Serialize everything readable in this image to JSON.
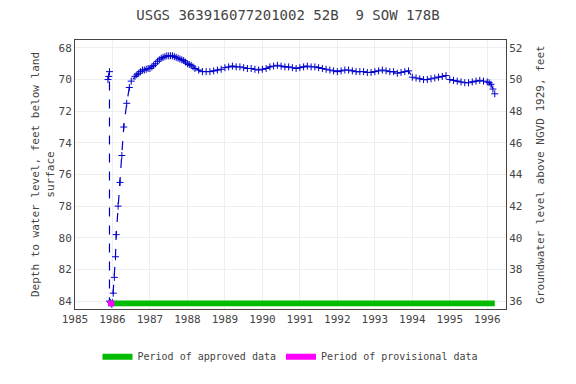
{
  "chart_data": {
    "type": "line",
    "title": "USGS 363916077201002 52B  9 SOW 178B",
    "ylabel": "Depth to water level, feet below land\nsurface",
    "y2label": "Groundwater level above NGVD 1929, feet",
    "xlim": [
      1985.0,
      1996.5
    ],
    "xticks": [
      1985,
      1986,
      1987,
      1988,
      1989,
      1990,
      1991,
      1992,
      1993,
      1994,
      1995,
      1996
    ],
    "ylim": [
      84.5,
      67.5
    ],
    "yticks": [
      68,
      70,
      72,
      74,
      76,
      78,
      80,
      82,
      84
    ],
    "y2lim": [
      35.5,
      52.5
    ],
    "y2ticks": [
      36,
      38,
      40,
      42,
      44,
      46,
      48,
      50,
      52
    ],
    "grid": true,
    "legend": "bottom",
    "series": [
      {
        "type": "line",
        "color": "#0000cc",
        "line_style": "dashed",
        "marker": "plus",
        "x": [
          1985.88,
          1985.9,
          1985.92,
          1985.92,
          1985.95,
          1985.98,
          1986.0,
          1986.02,
          1986.05,
          1986.08,
          1986.1,
          1986.15,
          1986.2,
          1986.25,
          1986.3,
          1986.38,
          1986.45,
          1986.5,
          1986.6,
          1986.65,
          1986.7,
          1986.75,
          1986.8,
          1986.85,
          1986.9,
          1986.95,
          1987.0,
          1987.05,
          1987.1,
          1987.15,
          1987.2,
          1987.25,
          1987.3,
          1987.35,
          1987.4,
          1987.45,
          1987.5,
          1987.55,
          1987.6,
          1987.65,
          1987.7,
          1987.75,
          1987.8,
          1987.85,
          1987.9,
          1987.95,
          1988.0,
          1988.05,
          1988.1,
          1988.15,
          1988.2,
          1988.3,
          1988.4,
          1988.5,
          1988.6,
          1988.7,
          1988.8,
          1988.9,
          1989.0,
          1989.1,
          1989.2,
          1989.3,
          1989.4,
          1989.5,
          1989.6,
          1989.7,
          1989.8,
          1989.9,
          1990.0,
          1990.1,
          1990.2,
          1990.3,
          1990.4,
          1990.5,
          1990.6,
          1990.7,
          1990.8,
          1990.9,
          1991.0,
          1991.1,
          1991.2,
          1991.3,
          1991.4,
          1991.5,
          1991.6,
          1991.7,
          1991.8,
          1991.9,
          1992.0,
          1992.1,
          1992.2,
          1992.3,
          1992.4,
          1992.5,
          1992.6,
          1992.7,
          1992.8,
          1992.9,
          1993.0,
          1993.1,
          1993.2,
          1993.3,
          1993.4,
          1993.5,
          1993.6,
          1993.7,
          1993.8,
          1993.9,
          1994.0,
          1994.1,
          1994.2,
          1994.3,
          1994.4,
          1994.5,
          1994.6,
          1994.7,
          1994.8,
          1994.9,
          1995.0,
          1995.1,
          1995.2,
          1995.3,
          1995.4,
          1995.5,
          1995.6,
          1995.7,
          1995.8,
          1995.9,
          1996.0,
          1996.05,
          1996.1,
          1996.15,
          1996.2
        ],
        "values": [
          70.0,
          69.8,
          69.5,
          84.0,
          84.1,
          84.2,
          84.1,
          83.5,
          82.5,
          81.2,
          79.8,
          78.0,
          76.5,
          74.8,
          73.0,
          71.5,
          70.5,
          70.1,
          69.8,
          69.7,
          69.6,
          69.5,
          69.4,
          69.4,
          69.35,
          69.3,
          69.3,
          69.2,
          69.1,
          69.0,
          68.85,
          68.75,
          68.65,
          68.6,
          68.55,
          68.5,
          68.5,
          68.5,
          68.5,
          68.55,
          68.6,
          68.65,
          68.7,
          68.75,
          68.8,
          68.9,
          69.0,
          69.05,
          69.1,
          69.2,
          69.3,
          69.4,
          69.5,
          69.5,
          69.5,
          69.45,
          69.4,
          69.35,
          69.25,
          69.2,
          69.15,
          69.2,
          69.2,
          69.25,
          69.3,
          69.3,
          69.35,
          69.4,
          69.35,
          69.3,
          69.2,
          69.15,
          69.1,
          69.15,
          69.2,
          69.2,
          69.25,
          69.3,
          69.25,
          69.2,
          69.15,
          69.2,
          69.2,
          69.25,
          69.3,
          69.35,
          69.4,
          69.45,
          69.5,
          69.45,
          69.4,
          69.4,
          69.45,
          69.5,
          69.5,
          69.5,
          69.55,
          69.55,
          69.5,
          69.45,
          69.4,
          69.45,
          69.5,
          69.5,
          69.6,
          69.55,
          69.5,
          69.45,
          69.85,
          69.9,
          69.95,
          70.0,
          70.0,
          69.95,
          69.9,
          69.85,
          69.8,
          69.75,
          70.0,
          70.05,
          70.1,
          70.15,
          70.2,
          70.2,
          70.15,
          70.1,
          70.05,
          70.1,
          70.15,
          70.2,
          70.3,
          70.6,
          70.9
        ]
      },
      {
        "type": "band",
        "name": "Period of approved data",
        "color": "#00bb00",
        "x": [
          1985.88,
          1996.2
        ],
        "lower": [
          83.97,
          83.97
        ],
        "upper": [
          84.33,
          84.33
        ]
      },
      {
        "type": "band",
        "name": "Period of provisional data",
        "color": "#ff00ff",
        "x": [
          1985.88,
          1986.05
        ],
        "lower": [
          83.97,
          83.97
        ],
        "upper": [
          84.33,
          84.33
        ]
      }
    ]
  }
}
